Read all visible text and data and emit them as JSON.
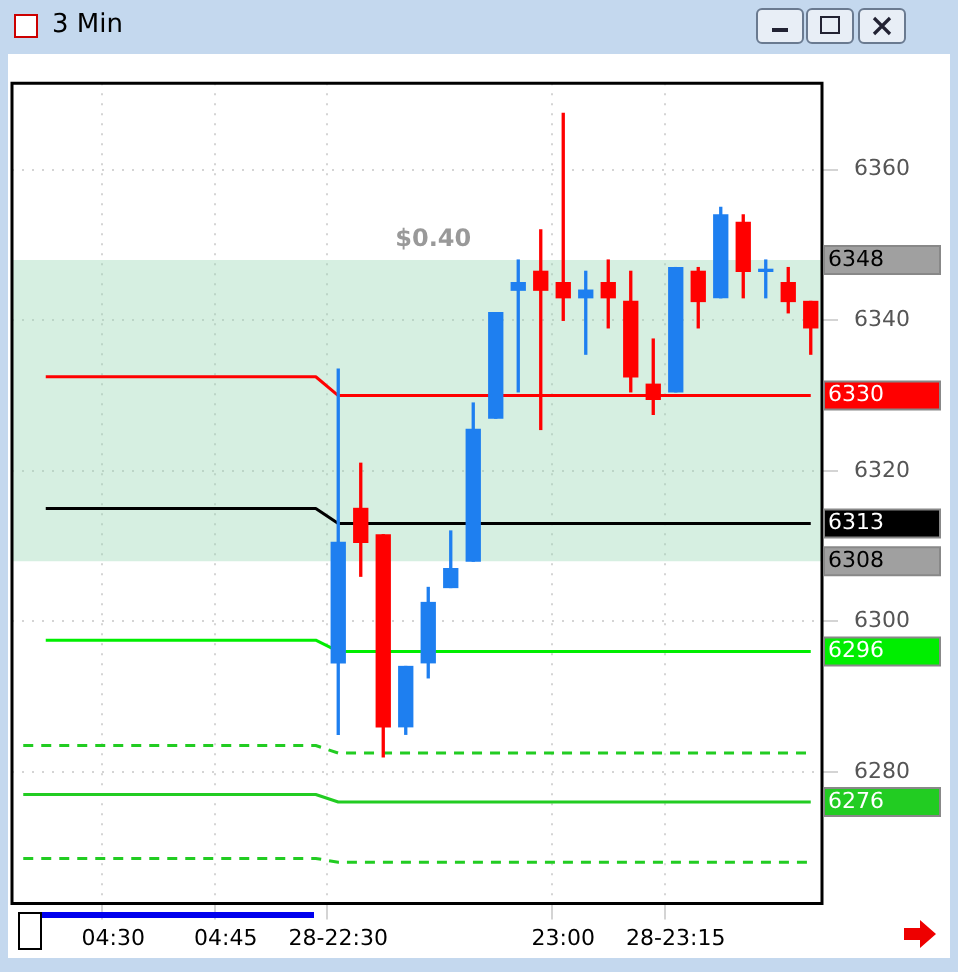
{
  "chart_data": {
    "type": "candlestick",
    "title": "3 Min",
    "categories": [
      null,
      null,
      null,
      null,
      "04:30",
      null,
      null,
      null,
      null,
      "04:45",
      null,
      null,
      null,
      null,
      "28-22:30",
      null,
      null,
      null,
      null,
      null,
      null,
      null,
      null,
      null,
      "23:00",
      null,
      null,
      null,
      null,
      "28-23:15",
      null,
      null,
      null,
      null,
      null,
      null
    ],
    "ohlc": [
      null,
      null,
      null,
      null,
      null,
      null,
      null,
      null,
      null,
      null,
      null,
      null,
      null,
      null,
      [
        6294.5,
        6333.5,
        6285,
        6310.5
      ],
      [
        6315,
        6321,
        6306,
        6310.5
      ],
      [
        6311.5,
        6311.5,
        6282,
        6286
      ],
      [
        6286,
        6294,
        6285,
        6294
      ],
      [
        6294.5,
        6304.5,
        6292.5,
        6302.5
      ],
      [
        6304.5,
        6312,
        6304.5,
        6307
      ],
      [
        6308,
        6329,
        6308,
        6325.5
      ],
      [
        6327,
        6341,
        6327,
        6341
      ],
      [
        6344,
        6348,
        6330.5,
        6345
      ],
      [
        6346.5,
        6352,
        6325.5,
        6344
      ],
      [
        6345,
        6367.5,
        6340,
        6343
      ],
      [
        6343,
        6346.5,
        6335.5,
        6344
      ],
      [
        6345,
        6348,
        6339,
        6343
      ],
      [
        6342.5,
        6346.5,
        6330.5,
        6332.5
      ],
      [
        6331.5,
        6337.5,
        6327.5,
        6329.5
      ],
      [
        6330.5,
        6347,
        6330.5,
        6347
      ],
      [
        6346.5,
        6347,
        6339,
        6342.5
      ],
      [
        6343,
        6355,
        6343,
        6354
      ],
      [
        6353,
        6354,
        6343,
        6346.5
      ],
      [
        6346.5,
        6348,
        6343,
        6346.5
      ],
      [
        6345,
        6347,
        6341,
        6342.5
      ],
      [
        6342.5,
        6342.5,
        6335.5,
        6339
      ]
    ],
    "colors": [
      null,
      null,
      null,
      null,
      null,
      null,
      null,
      null,
      null,
      null,
      null,
      null,
      null,
      null,
      "#1e7ff0",
      "#ff0000",
      "#ff0000",
      "#1e7ff0",
      "#1e7ff0",
      "#1e7ff0",
      "#1e7ff0",
      "#1e7ff0",
      "#1e7ff0",
      "#ff0000",
      "#ff0000",
      "#1e7ff0",
      "#ff0000",
      "#ff0000",
      "#ff0000",
      "#1e7ff0",
      "#ff0000",
      "#1e7ff0",
      "#ff0000",
      "#1e7ff0",
      "#ff0000",
      "#ff0000"
    ],
    "series": [
      {
        "type": "line",
        "color": "#ff0000",
        "line_style": "solid",
        "values": [
          null,
          6332.5,
          6332.5,
          6332.5,
          6332.5,
          6332.5,
          6332.5,
          6332.5,
          6332.5,
          6332.5,
          6332.5,
          6332.5,
          6332.5,
          6332.5,
          6330,
          6330,
          6330,
          6330,
          6330,
          6330,
          6330,
          6330,
          6330,
          6330,
          6330,
          6330,
          6330,
          6330,
          6330,
          6330,
          6330,
          6330,
          6330,
          6330,
          6330,
          6330
        ],
        "value_labels": [
          null,
          null,
          null,
          null,
          null,
          null,
          null,
          null,
          null,
          null,
          null,
          null,
          null,
          null,
          null,
          null,
          null,
          null,
          null,
          null,
          null,
          null,
          null,
          null,
          null,
          null,
          null,
          null,
          null,
          null,
          null,
          null,
          null,
          null,
          null,
          "6330"
        ]
      },
      {
        "type": "line",
        "color": "#000000",
        "line_style": "solid",
        "values": [
          null,
          6315,
          6315,
          6315,
          6315,
          6315,
          6315,
          6315,
          6315,
          6315,
          6315,
          6315,
          6315,
          6315,
          6313,
          6313,
          6313,
          6313,
          6313,
          6313,
          6313,
          6313,
          6313,
          6313,
          6313,
          6313,
          6313,
          6313,
          6313,
          6313,
          6313,
          6313,
          6313,
          6313,
          6313,
          6313
        ],
        "value_labels": [
          null,
          null,
          null,
          null,
          null,
          null,
          null,
          null,
          null,
          null,
          null,
          null,
          null,
          null,
          null,
          null,
          null,
          null,
          null,
          null,
          null,
          null,
          null,
          null,
          null,
          null,
          null,
          null,
          null,
          null,
          null,
          null,
          null,
          null,
          null,
          "6313"
        ]
      },
      {
        "type": "line",
        "color": "#00ee00",
        "line_style": "solid",
        "values": [
          null,
          6297.5,
          6297.5,
          6297.5,
          6297.5,
          6297.5,
          6297.5,
          6297.5,
          6297.5,
          6297.5,
          6297.5,
          6297.5,
          6297.5,
          6297.5,
          6296,
          6296,
          6296,
          6296,
          6296,
          6296,
          6296,
          6296,
          6296,
          6296,
          6296,
          6296,
          6296,
          6296,
          6296,
          6296,
          6296,
          6296,
          6296,
          6296,
          6296,
          6296
        ],
        "value_labels": [
          null,
          null,
          null,
          null,
          null,
          null,
          null,
          null,
          null,
          null,
          null,
          null,
          null,
          null,
          null,
          null,
          null,
          null,
          null,
          null,
          null,
          null,
          null,
          null,
          null,
          null,
          null,
          null,
          null,
          null,
          null,
          null,
          null,
          null,
          null,
          "6296"
        ]
      },
      {
        "type": "line",
        "color": "#22cc22",
        "line_style": "dashed",
        "values": [
          6283.5,
          6283.5,
          6283.5,
          6283.5,
          6283.5,
          6283.5,
          6283.5,
          6283.5,
          6283.5,
          6283.5,
          6283.5,
          6283.5,
          6283.5,
          6283.5,
          6282.5,
          6282.5,
          6282.5,
          6282.5,
          6282.5,
          6282.5,
          6282.5,
          6282.5,
          6282.5,
          6282.5,
          6282.5,
          6282.5,
          6282.5,
          6282.5,
          6282.5,
          6282.5,
          6282.5,
          6282.5,
          6282.5,
          6282.5,
          6282.5,
          6282.5
        ]
      },
      {
        "type": "line",
        "color": "#22cc22",
        "line_style": "solid",
        "values": [
          6277,
          6277,
          6277,
          6277,
          6277,
          6277,
          6277,
          6277,
          6277,
          6277,
          6277,
          6277,
          6277,
          6277,
          6276,
          6276,
          6276,
          6276,
          6276,
          6276,
          6276,
          6276,
          6276,
          6276,
          6276,
          6276,
          6276,
          6276,
          6276,
          6276,
          6276,
          6276,
          6276,
          6276,
          6276,
          6276
        ],
        "value_labels": [
          null,
          null,
          null,
          null,
          null,
          null,
          null,
          null,
          null,
          null,
          null,
          null,
          null,
          null,
          null,
          null,
          null,
          null,
          null,
          null,
          null,
          null,
          null,
          null,
          null,
          null,
          null,
          null,
          null,
          null,
          null,
          null,
          null,
          null,
          null,
          "6276"
        ]
      },
      {
        "type": "line",
        "color": "#22cc22",
        "line_style": "dashed",
        "values": [
          6268.5,
          6268.5,
          6268.5,
          6268.5,
          6268.5,
          6268.5,
          6268.5,
          6268.5,
          6268.5,
          6268.5,
          6268.5,
          6268.5,
          6268.5,
          6268.5,
          6268,
          6268,
          6268,
          6268,
          6268,
          6268,
          6268,
          6268,
          6268,
          6268,
          6268,
          6268,
          6268,
          6268,
          6268,
          6268,
          6268,
          6268,
          6268,
          6268,
          6268,
          6268
        ]
      }
    ],
    "bands": [
      {
        "axis": "y",
        "from": 6308,
        "to": 6348,
        "label": "$0.40",
        "color": "#98d8b4"
      }
    ],
    "annotations": [
      "6348",
      "6308"
    ],
    "ylim": [
      6262.5,
      6371.5
    ],
    "yticks": [
      6280,
      6300,
      6320,
      6340,
      6360
    ],
    "grid": true
  }
}
